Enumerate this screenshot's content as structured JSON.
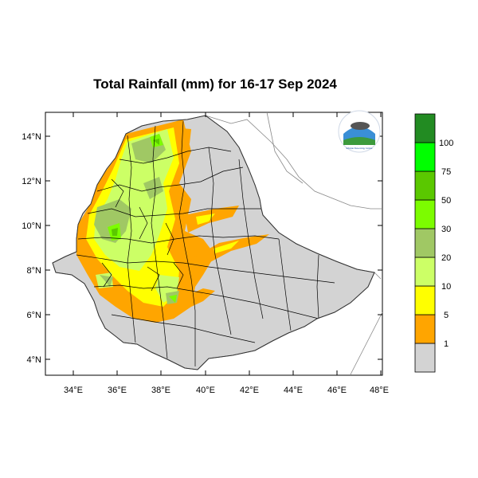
{
  "title": "Total Rainfall (mm) for 16-17 Sep 2024",
  "latitude_ticks": [
    "14°N",
    "12°N",
    "10°N",
    "8°N",
    "6°N",
    "4°N"
  ],
  "longitude_ticks": [
    "34°E",
    "36°E",
    "38°E",
    "40°E",
    "42°E",
    "44°E",
    "46°E",
    "48°E"
  ],
  "legend": {
    "levels": [
      "1",
      "5",
      "10",
      "20",
      "30",
      "50",
      "75",
      "100"
    ],
    "colors": [
      "#d3d3d3",
      "#ffa500",
      "#ffff00",
      "#ccff66",
      "#a0c864",
      "#7cfc00",
      "#5ac800",
      "#00ff00",
      "#228b22"
    ]
  },
  "colors": {
    "land": "#d3d3d3",
    "background": "#ffffff",
    "orange": "#ffa500",
    "yellow": "#ffff00",
    "light_green": "#ccff66",
    "olive": "#a0c864",
    "lime": "#7cfc00",
    "green": "#5ac800",
    "dark_green": "#228b22"
  },
  "logo": {
    "icon": "meteorology-agency-logo",
    "text": "Ethiopian Meteorology Institute"
  }
}
